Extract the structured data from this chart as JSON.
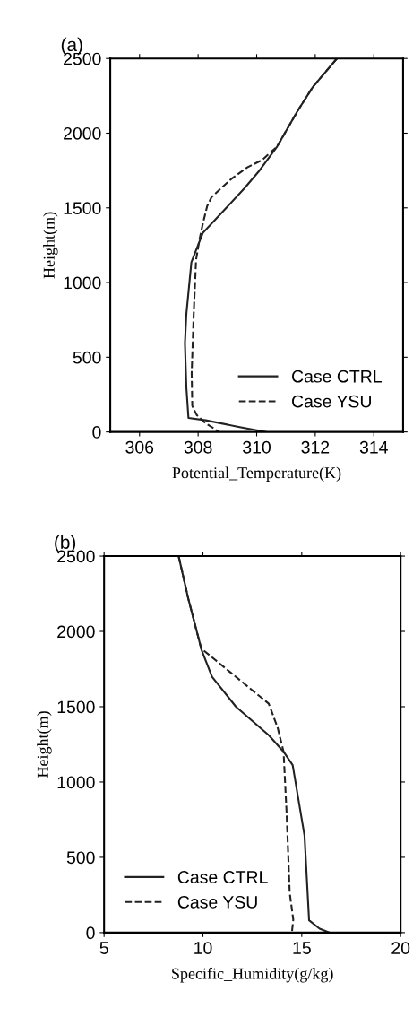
{
  "chart_data": [
    {
      "type": "line",
      "title": "(a)",
      "xlabel": "Potential_Temperature(K)",
      "ylabel": "Height(m)",
      "xlim": [
        305,
        315
      ],
      "xticks": [
        306,
        308,
        310,
        312,
        314
      ],
      "ylim": [
        0,
        2500
      ],
      "yticks": [
        0,
        500,
        1000,
        1500,
        2000,
        2500
      ],
      "legend": "lower right",
      "grid": false,
      "series": [
        {
          "name": "Case CTRL",
          "color": "#222222",
          "line_style": "solid",
          "x": [
            312.74,
            311.92,
            311.4,
            310.7,
            310.1,
            309.58,
            308.97,
            308.16,
            307.77,
            307.6,
            307.55,
            307.6,
            307.67,
            308.26,
            309.38,
            310.3
          ],
          "values": [
            2500,
            2310,
            2150,
            1911,
            1751,
            1631,
            1502,
            1332,
            1136,
            793,
            593,
            294,
            94,
            78,
            34,
            0
          ]
        },
        {
          "name": "Case YSU",
          "color": "#222222",
          "line_style": "dashed",
          "x": [
            312.74,
            311.92,
            311.4,
            310.7,
            310.19,
            309.68,
            309.12,
            308.46,
            308.31,
            308.16,
            308.05,
            307.93,
            307.85,
            307.78,
            307.8,
            307.95,
            308.26,
            308.72
          ],
          "values": [
            2500,
            2310,
            2150,
            1911,
            1821,
            1771,
            1691,
            1572,
            1512,
            1392,
            1292,
            1152,
            793,
            393,
            174,
            114,
            58,
            0
          ]
        }
      ]
    },
    {
      "type": "line",
      "title": "(b)",
      "xlabel": "Specific_Humidity(g/kg)",
      "ylabel": "Height(m)",
      "xlim": [
        5,
        20
      ],
      "xticks": [
        5,
        10,
        15,
        20
      ],
      "ylim": [
        0,
        2500
      ],
      "yticks": [
        0,
        500,
        1000,
        1500,
        2000,
        2500
      ],
      "legend": "lower left",
      "grid": false,
      "series": [
        {
          "name": "Case CTRL",
          "color": "#222222",
          "line_style": "solid",
          "x": [
            8.77,
            9.26,
            9.93,
            10.46,
            11.67,
            13.33,
            14.08,
            14.54,
            15.14,
            15.37,
            15.9,
            16.4
          ],
          "values": [
            2500,
            2217,
            1878,
            1699,
            1500,
            1311,
            1201,
            1112,
            643,
            82,
            26,
            0
          ]
        },
        {
          "name": "Case YSU",
          "color": "#222222",
          "line_style": "dashed",
          "x": [
            8.77,
            9.26,
            9.93,
            10.09,
            13.33,
            13.78,
            14.08,
            14.23,
            14.39,
            14.57,
            14.5
          ],
          "values": [
            2500,
            2217,
            1878,
            1868,
            1520,
            1361,
            1201,
            803,
            265,
            86,
            0
          ]
        }
      ]
    }
  ]
}
